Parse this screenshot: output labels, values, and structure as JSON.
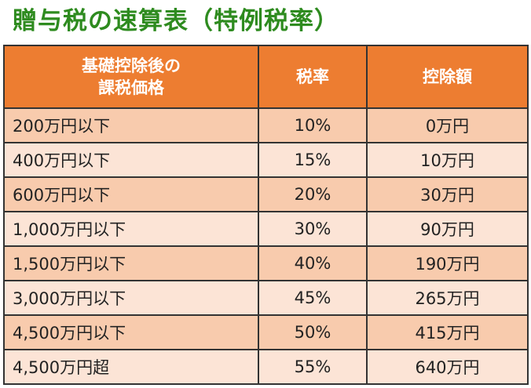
{
  "title": "贈与税の速算表（特例税率）",
  "table": {
    "headers": {
      "bracket_line1": "基礎控除後の",
      "bracket_line2": "課税価格",
      "rate": "税率",
      "deduction": "控除額"
    },
    "rows": [
      {
        "bracket": "200万円以下",
        "rate": "10%",
        "deduction": "0万円"
      },
      {
        "bracket": "400万円以下",
        "rate": "15%",
        "deduction": "10万円"
      },
      {
        "bracket": "600万円以下",
        "rate": "20%",
        "deduction": "30万円"
      },
      {
        "bracket": "1,000万円以下",
        "rate": "30%",
        "deduction": "90万円"
      },
      {
        "bracket": "1,500万円以下",
        "rate": "40%",
        "deduction": "190万円"
      },
      {
        "bracket": "3,000万円以下",
        "rate": "45%",
        "deduction": "265万円"
      },
      {
        "bracket": "4,500万円以下",
        "rate": "50%",
        "deduction": "415万円"
      },
      {
        "bracket": "4,500万円超",
        "rate": "55%",
        "deduction": "640万円"
      }
    ]
  },
  "colors": {
    "title": "#2e8b1f",
    "header_background": "#ed7d31",
    "header_text": "#ffffff",
    "row_dark": "#f8cbad",
    "row_light": "#fce4d6",
    "border": "#333333"
  }
}
